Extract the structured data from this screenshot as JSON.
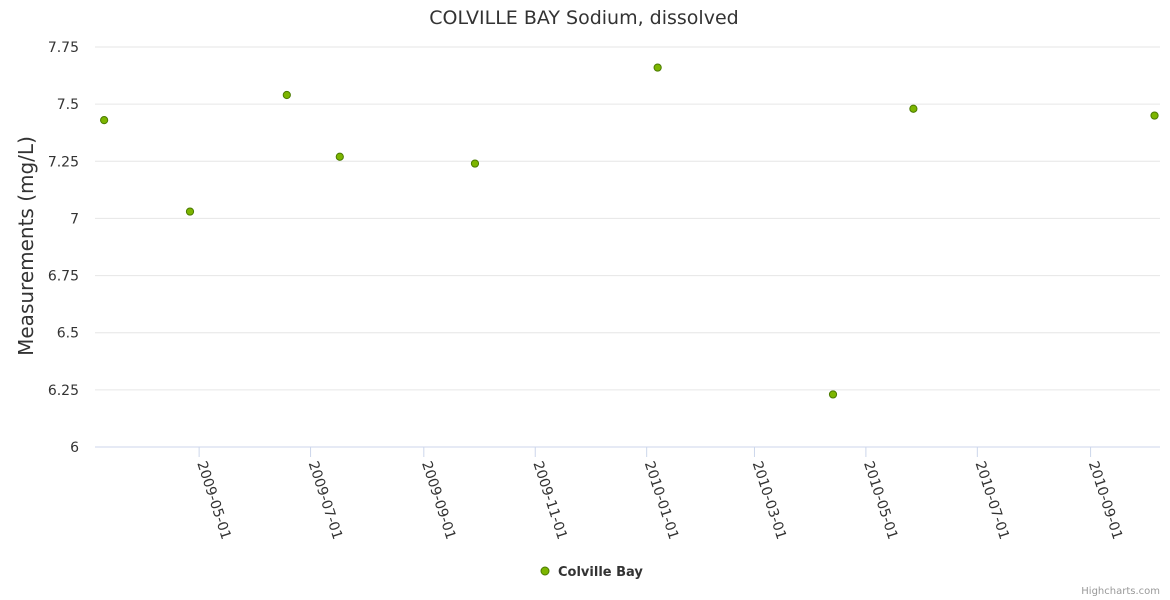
{
  "chart_data": {
    "type": "scatter",
    "title": "COLVILLE BAY Sodium, dissolved",
    "xlabel": "",
    "ylabel": "Measurements (mg/L)",
    "ylim": [
      6,
      7.75
    ],
    "yticks": [
      6,
      6.25,
      6.5,
      6.75,
      7,
      7.25,
      7.5,
      7.75
    ],
    "ytick_labels": [
      "6",
      "6.25",
      "6.5",
      "6.75",
      "7",
      "7.25",
      "7.5",
      "7.75"
    ],
    "xlim": [
      "2009-03-05",
      "2010-10-09"
    ],
    "xticks": [
      "2009-05-01",
      "2009-07-01",
      "2009-09-01",
      "2009-11-01",
      "2010-01-01",
      "2010-03-01",
      "2010-05-01",
      "2010-07-01",
      "2010-09-01"
    ],
    "grid": true,
    "legend": "bottom-center",
    "series": [
      {
        "name": "Colville Bay",
        "color": "#5aa000",
        "points": [
          {
            "x": "2009-03-10",
            "y": 7.43
          },
          {
            "x": "2009-04-26",
            "y": 7.03
          },
          {
            "x": "2009-06-18",
            "y": 7.54
          },
          {
            "x": "2009-07-17",
            "y": 7.27
          },
          {
            "x": "2009-09-29",
            "y": 7.24
          },
          {
            "x": "2010-01-07",
            "y": 7.66
          },
          {
            "x": "2010-04-13",
            "y": 6.23
          },
          {
            "x": "2010-05-27",
            "y": 7.48
          },
          {
            "x": "2010-10-06",
            "y": 7.45
          }
        ]
      }
    ]
  },
  "credits": "Highcharts.com",
  "colors": {
    "grid": "#e6e6e6",
    "axis": "#ccd6eb",
    "marker_fill": "#7cb500",
    "marker_stroke": "#4a7a00"
  }
}
